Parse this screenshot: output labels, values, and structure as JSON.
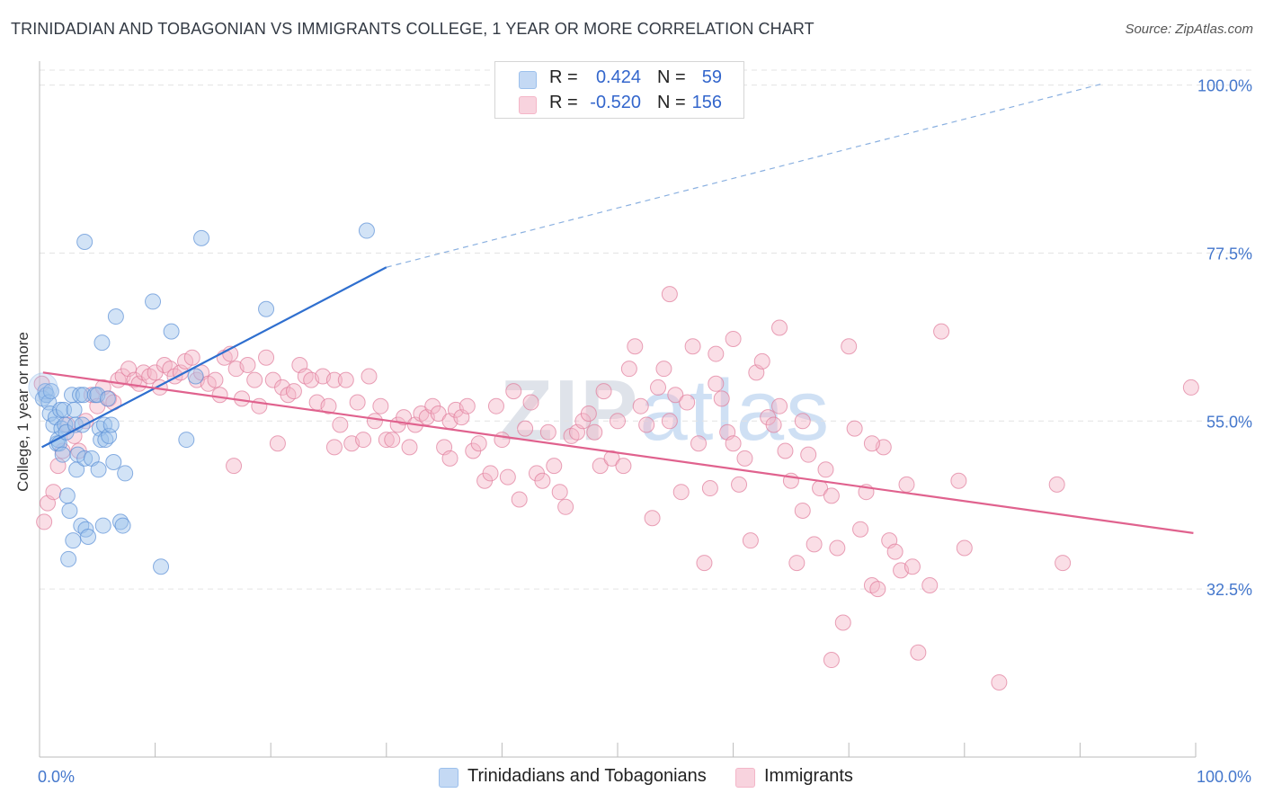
{
  "title": "TRINIDADIAN AND TOBAGONIAN VS IMMIGRANTS COLLEGE, 1 YEAR OR MORE CORRELATION CHART",
  "source": "Source: ZipAtlas.com",
  "watermark": {
    "zip": "ZIP",
    "atlas": "atlas"
  },
  "legend": {
    "rows": [
      {
        "r_label": "R =",
        "r_value": "0.424",
        "n_label": "N =",
        "n_value": "59",
        "color": "#9cc0ec"
      },
      {
        "r_label": "R =",
        "r_value": "-0.520",
        "n_label": "N =",
        "n_value": "156",
        "color": "#f4b6c8"
      }
    ]
  },
  "bottom_legend": [
    {
      "label": "Trinidadians and Tobagonians",
      "color": "#9cc0ec"
    },
    {
      "label": "Immigrants",
      "color": "#f4b6c8"
    }
  ],
  "chart_data": {
    "type": "scatter",
    "title": "TRINIDADIAN AND TOBAGONIAN VS IMMIGRANTS COLLEGE, 1 YEAR OR MORE CORRELATION CHART",
    "xlabel": "",
    "ylabel": "College, 1 year or more",
    "xlim": [
      0,
      100
    ],
    "ylim": [
      10,
      102
    ],
    "y_ticks": [
      {
        "value": 100,
        "label": "100.0%"
      },
      {
        "value": 77.5,
        "label": "77.5%"
      },
      {
        "value": 55,
        "label": "55.0%"
      },
      {
        "value": 32.5,
        "label": "32.5%"
      }
    ],
    "x_tick_labels": [
      {
        "value": 0,
        "label": "0.0%"
      },
      {
        "value": 100,
        "label": "100.0%"
      }
    ],
    "series": [
      {
        "name": "Trinidadians and Tobagonians",
        "color": "#9cc0ec",
        "stroke": "#5a8fd6",
        "trend": {
          "x0": 0.2,
          "y0": 51.5,
          "x1": 30.0,
          "y1": 75.6,
          "dash_to_x": 92.0,
          "dash_to_y": 100.2,
          "color": "#2f6fcf"
        },
        "points": [
          [
            0.3,
            58.0
          ],
          [
            0.5,
            59.0
          ],
          [
            0.6,
            58.5
          ],
          [
            0.8,
            57.5
          ],
          [
            1.0,
            59.0
          ],
          [
            0.9,
            56.0
          ],
          [
            1.2,
            54.5
          ],
          [
            1.4,
            55.5
          ],
          [
            1.5,
            52.0
          ],
          [
            1.6,
            52.5
          ],
          [
            1.7,
            52.0
          ],
          [
            1.8,
            56.5
          ],
          [
            1.9,
            54.0
          ],
          [
            2.0,
            50.5
          ],
          [
            2.1,
            56.5
          ],
          [
            2.2,
            54.5
          ],
          [
            2.3,
            53.5
          ],
          [
            2.4,
            45.0
          ],
          [
            2.5,
            36.5
          ],
          [
            2.6,
            43.0
          ],
          [
            2.8,
            58.5
          ],
          [
            2.9,
            39.0
          ],
          [
            3.0,
            56.5
          ],
          [
            3.1,
            54.5
          ],
          [
            3.2,
            48.5
          ],
          [
            3.3,
            50.5
          ],
          [
            3.5,
            58.5
          ],
          [
            3.6,
            41.0
          ],
          [
            3.7,
            54.5
          ],
          [
            3.8,
            58.5
          ],
          [
            3.9,
            50.0
          ],
          [
            4.0,
            40.5
          ],
          [
            4.2,
            39.5
          ],
          [
            4.5,
            50.0
          ],
          [
            4.8,
            58.5
          ],
          [
            5.0,
            58.5
          ],
          [
            5.1,
            48.5
          ],
          [
            5.2,
            54.0
          ],
          [
            5.3,
            52.5
          ],
          [
            5.5,
            41.0
          ],
          [
            5.6,
            54.5
          ],
          [
            5.9,
            58.0
          ],
          [
            5.7,
            52.5
          ],
          [
            6.0,
            53.0
          ],
          [
            6.2,
            54.5
          ],
          [
            6.4,
            49.5
          ],
          [
            6.6,
            69.0
          ],
          [
            7.0,
            41.5
          ],
          [
            7.2,
            41.0
          ],
          [
            7.4,
            48.0
          ],
          [
            5.4,
            65.5
          ],
          [
            3.9,
            79.0
          ],
          [
            9.8,
            71.0
          ],
          [
            10.5,
            35.5
          ],
          [
            11.4,
            67.0
          ],
          [
            12.7,
            52.5
          ],
          [
            13.5,
            61.0
          ],
          [
            14.0,
            79.5
          ],
          [
            19.6,
            70.0
          ],
          [
            28.3,
            80.5
          ]
        ]
      },
      {
        "name": "Immigrants",
        "color": "#f4b6c8",
        "stroke": "#e07a9a",
        "trend": {
          "x0": 0.3,
          "y0": 61.5,
          "x1": 99.8,
          "y1": 40.0,
          "color": "#e0628e"
        },
        "points": [
          [
            0.2,
            60.0
          ],
          [
            0.4,
            41.5
          ],
          [
            0.7,
            44.0
          ],
          [
            1.2,
            45.5
          ],
          [
            1.6,
            49.0
          ],
          [
            2.0,
            51.0
          ],
          [
            2.4,
            54.5
          ],
          [
            3.0,
            53.0
          ],
          [
            3.4,
            51.0
          ],
          [
            4.0,
            55.0
          ],
          [
            4.5,
            58.5
          ],
          [
            5.0,
            57.0
          ],
          [
            5.5,
            59.5
          ],
          [
            6.0,
            58.0
          ],
          [
            6.4,
            57.5
          ],
          [
            6.8,
            60.5
          ],
          [
            7.2,
            61.0
          ],
          [
            7.7,
            62.0
          ],
          [
            8.2,
            60.5
          ],
          [
            8.6,
            60.0
          ],
          [
            9.0,
            61.5
          ],
          [
            9.5,
            61.0
          ],
          [
            10.0,
            61.5
          ],
          [
            10.4,
            59.5
          ],
          [
            10.8,
            62.5
          ],
          [
            11.3,
            62.0
          ],
          [
            11.7,
            61.0
          ],
          [
            12.2,
            61.5
          ],
          [
            12.6,
            63.0
          ],
          [
            13.2,
            63.5
          ],
          [
            13.6,
            60.5
          ],
          [
            14.0,
            61.5
          ],
          [
            14.6,
            60.0
          ],
          [
            15.2,
            60.5
          ],
          [
            15.6,
            58.5
          ],
          [
            16.0,
            63.5
          ],
          [
            16.5,
            64.0
          ],
          [
            17.0,
            62.0
          ],
          [
            17.5,
            58.0
          ],
          [
            18.0,
            62.5
          ],
          [
            18.6,
            60.5
          ],
          [
            19.0,
            57.0
          ],
          [
            19.6,
            63.5
          ],
          [
            20.2,
            60.5
          ],
          [
            20.6,
            52.0
          ],
          [
            21.0,
            59.5
          ],
          [
            21.5,
            58.5
          ],
          [
            22.0,
            59.0
          ],
          [
            22.5,
            62.5
          ],
          [
            23.0,
            61.0
          ],
          [
            23.5,
            60.5
          ],
          [
            24.0,
            57.5
          ],
          [
            24.5,
            61.0
          ],
          [
            25.0,
            57.0
          ],
          [
            25.5,
            60.5
          ],
          [
            26.0,
            54.5
          ],
          [
            26.5,
            60.5
          ],
          [
            27.0,
            52.0
          ],
          [
            27.5,
            57.5
          ],
          [
            28.0,
            52.5
          ],
          [
            28.5,
            61.0
          ],
          [
            29.0,
            55.0
          ],
          [
            29.5,
            57.0
          ],
          [
            30.0,
            52.5
          ],
          [
            30.5,
            52.5
          ],
          [
            31.0,
            54.5
          ],
          [
            31.5,
            55.5
          ],
          [
            32.0,
            51.5
          ],
          [
            32.5,
            54.5
          ],
          [
            33.0,
            56.0
          ],
          [
            33.5,
            55.5
          ],
          [
            34.0,
            57.0
          ],
          [
            34.5,
            56.0
          ],
          [
            35.0,
            51.5
          ],
          [
            35.5,
            55.0
          ],
          [
            36.0,
            56.5
          ],
          [
            36.5,
            55.5
          ],
          [
            37.0,
            57.0
          ],
          [
            37.5,
            51.0
          ],
          [
            38.0,
            52.0
          ],
          [
            38.5,
            47.0
          ],
          [
            39.0,
            48.0
          ],
          [
            39.5,
            57.0
          ],
          [
            40.0,
            52.5
          ],
          [
            40.5,
            47.5
          ],
          [
            41.0,
            59.0
          ],
          [
            41.5,
            44.5
          ],
          [
            42.0,
            54.0
          ],
          [
            42.5,
            57.5
          ],
          [
            43.0,
            48.0
          ],
          [
            43.5,
            47.0
          ],
          [
            44.0,
            53.5
          ],
          [
            44.5,
            49.0
          ],
          [
            45.0,
            45.5
          ],
          [
            45.5,
            43.5
          ],
          [
            46.0,
            53.0
          ],
          [
            46.5,
            53.5
          ],
          [
            47.0,
            55.0
          ],
          [
            47.5,
            56.0
          ],
          [
            48.0,
            53.5
          ],
          [
            48.5,
            49.0
          ],
          [
            48.8,
            59.0
          ],
          [
            49.5,
            50.0
          ],
          [
            50.0,
            55.0
          ],
          [
            50.5,
            49.0
          ],
          [
            51.0,
            62.0
          ],
          [
            51.5,
            65.0
          ],
          [
            52.0,
            57.0
          ],
          [
            52.5,
            54.5
          ],
          [
            53.0,
            42.0
          ],
          [
            53.5,
            59.5
          ],
          [
            54.0,
            62.0
          ],
          [
            54.5,
            55.0
          ],
          [
            55.0,
            58.5
          ],
          [
            55.5,
            45.5
          ],
          [
            56.0,
            57.5
          ],
          [
            56.5,
            65.0
          ],
          [
            57.0,
            52.0
          ],
          [
            57.5,
            36.0
          ],
          [
            58.0,
            46.0
          ],
          [
            58.5,
            60.0
          ],
          [
            59.0,
            58.0
          ],
          [
            59.5,
            53.5
          ],
          [
            60.0,
            52.0
          ],
          [
            60.5,
            46.5
          ],
          [
            61.0,
            50.0
          ],
          [
            61.5,
            39.0
          ],
          [
            62.0,
            61.5
          ],
          [
            62.5,
            63.0
          ],
          [
            63.0,
            55.5
          ],
          [
            63.5,
            54.5
          ],
          [
            64.0,
            57.0
          ],
          [
            64.5,
            51.0
          ],
          [
            65.0,
            47.0
          ],
          [
            65.5,
            36.0
          ],
          [
            66.0,
            55.0
          ],
          [
            66.5,
            50.5
          ],
          [
            67.0,
            38.5
          ],
          [
            67.5,
            46.0
          ],
          [
            68.0,
            48.5
          ],
          [
            68.5,
            45.0
          ],
          [
            69.0,
            38.0
          ],
          [
            69.5,
            28.0
          ],
          [
            70.0,
            65.0
          ],
          [
            70.5,
            54.0
          ],
          [
            71.0,
            40.5
          ],
          [
            71.5,
            45.5
          ],
          [
            72.0,
            33.0
          ],
          [
            72.5,
            32.5
          ],
          [
            73.0,
            51.5
          ],
          [
            73.5,
            39.0
          ],
          [
            74.0,
            37.5
          ],
          [
            74.5,
            35.0
          ],
          [
            75.0,
            46.5
          ],
          [
            75.5,
            35.5
          ],
          [
            76.0,
            24.0
          ],
          [
            77.0,
            33.0
          ],
          [
            78.0,
            67.0
          ],
          [
            80.0,
            38.0
          ],
          [
            83.0,
            20.0
          ],
          [
            88.0,
            46.5
          ],
          [
            88.5,
            36.0
          ],
          [
            99.6,
            59.5
          ],
          [
            54.5,
            72.0
          ],
          [
            60.0,
            66.0
          ],
          [
            64.0,
            67.5
          ],
          [
            58.5,
            64.0
          ],
          [
            66.0,
            43.0
          ],
          [
            68.5,
            23.0
          ],
          [
            79.5,
            47.0
          ],
          [
            35.5,
            50.0
          ],
          [
            25.5,
            51.5
          ],
          [
            16.8,
            49.0
          ],
          [
            72.0,
            52.0
          ]
        ]
      }
    ]
  }
}
